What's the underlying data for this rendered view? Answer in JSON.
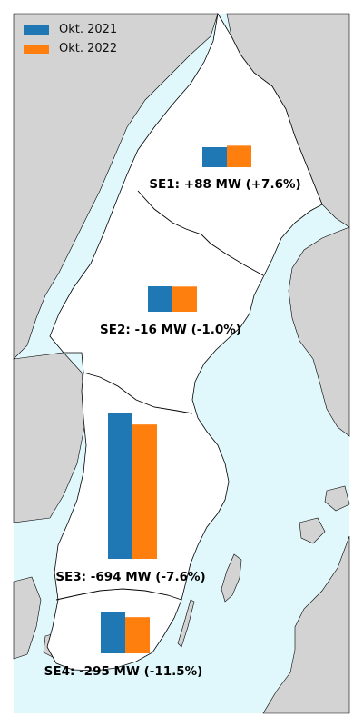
{
  "legend": [
    {
      "label": "Okt. 2021",
      "color": "#1f77b4"
    },
    {
      "label": "Okt. 2022",
      "color": "#ff7f0e"
    }
  ],
  "colors": {
    "sea": "#e0f8fc",
    "land": "#d3d3d3",
    "sweden": "#ffffff",
    "border": "#000000"
  },
  "zones": [
    {
      "id": "SE1",
      "label": "SE1: +88 MW (+7.6%)",
      "change_mw": 88,
      "change_pct": 7.6
    },
    {
      "id": "SE2",
      "label": "SE2: -16 MW (-1.0%)",
      "change_mw": -16,
      "change_pct": -1.0
    },
    {
      "id": "SE3",
      "label": "SE3: -694 MW (-7.6%)",
      "change_mw": -694,
      "change_pct": -7.6
    },
    {
      "id": "SE4",
      "label": "SE4: -295 MW (-11.5%)",
      "change_mw": -295,
      "change_pct": -11.5
    }
  ]
}
